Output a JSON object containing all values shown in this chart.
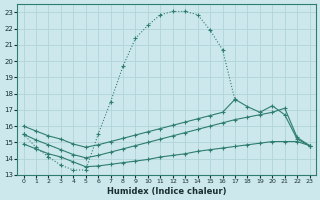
{
  "xlabel": "Humidex (Indice chaleur)",
  "bg_color": "#cce8ec",
  "grid_color": "#b0d4d8",
  "line_color": "#2e7d6e",
  "xlim": [
    -0.5,
    23.5
  ],
  "ylim": [
    13,
    23.5
  ],
  "xticks": [
    0,
    1,
    2,
    3,
    4,
    5,
    6,
    7,
    8,
    9,
    10,
    11,
    12,
    13,
    14,
    15,
    16,
    17,
    18,
    19,
    20,
    21,
    22,
    23
  ],
  "yticks": [
    13,
    14,
    15,
    16,
    17,
    18,
    19,
    20,
    21,
    22,
    23
  ],
  "line1_x": [
    0,
    1,
    2,
    3,
    4,
    5,
    6,
    7,
    8,
    9,
    10,
    11,
    12,
    13,
    14,
    15,
    16,
    17
  ],
  "line1_y": [
    15.5,
    14.7,
    14.1,
    13.6,
    13.3,
    13.3,
    15.5,
    17.5,
    19.7,
    21.4,
    22.2,
    22.85,
    23.05,
    23.05,
    22.85,
    21.9,
    20.7,
    17.6
  ],
  "line2_x": [
    0,
    1,
    2,
    3,
    4,
    5,
    6,
    7,
    8,
    9,
    10,
    11,
    12,
    13,
    14,
    15,
    16,
    17,
    18,
    19,
    20,
    21,
    22,
    23
  ],
  "line2_y": [
    14.9,
    14.6,
    14.3,
    14.1,
    13.8,
    13.5,
    13.55,
    13.65,
    13.75,
    13.85,
    13.95,
    14.1,
    14.2,
    14.3,
    14.45,
    14.55,
    14.65,
    14.75,
    14.85,
    14.95,
    15.05,
    15.05,
    15.05,
    14.8
  ],
  "line3_x": [
    0,
    1,
    2,
    3,
    4,
    5,
    6,
    7,
    8,
    9,
    10,
    11,
    12,
    13,
    14,
    15,
    16,
    17,
    18,
    19,
    20,
    21,
    22,
    23
  ],
  "line3_y": [
    15.5,
    15.15,
    14.85,
    14.55,
    14.25,
    14.05,
    14.2,
    14.4,
    14.6,
    14.8,
    15.0,
    15.2,
    15.4,
    15.6,
    15.8,
    16.0,
    16.2,
    16.4,
    16.55,
    16.7,
    16.85,
    17.1,
    15.3,
    14.8
  ],
  "line4_x": [
    0,
    1,
    2,
    3,
    4,
    5,
    6,
    7,
    8,
    9,
    10,
    11,
    12,
    13,
    14,
    15,
    16,
    17,
    18,
    19,
    20,
    21,
    22,
    23
  ],
  "line4_y": [
    16.0,
    15.7,
    15.4,
    15.2,
    14.9,
    14.7,
    14.85,
    15.05,
    15.25,
    15.45,
    15.65,
    15.85,
    16.05,
    16.25,
    16.45,
    16.65,
    16.85,
    17.65,
    17.2,
    16.85,
    17.25,
    16.7,
    15.2,
    14.8
  ]
}
